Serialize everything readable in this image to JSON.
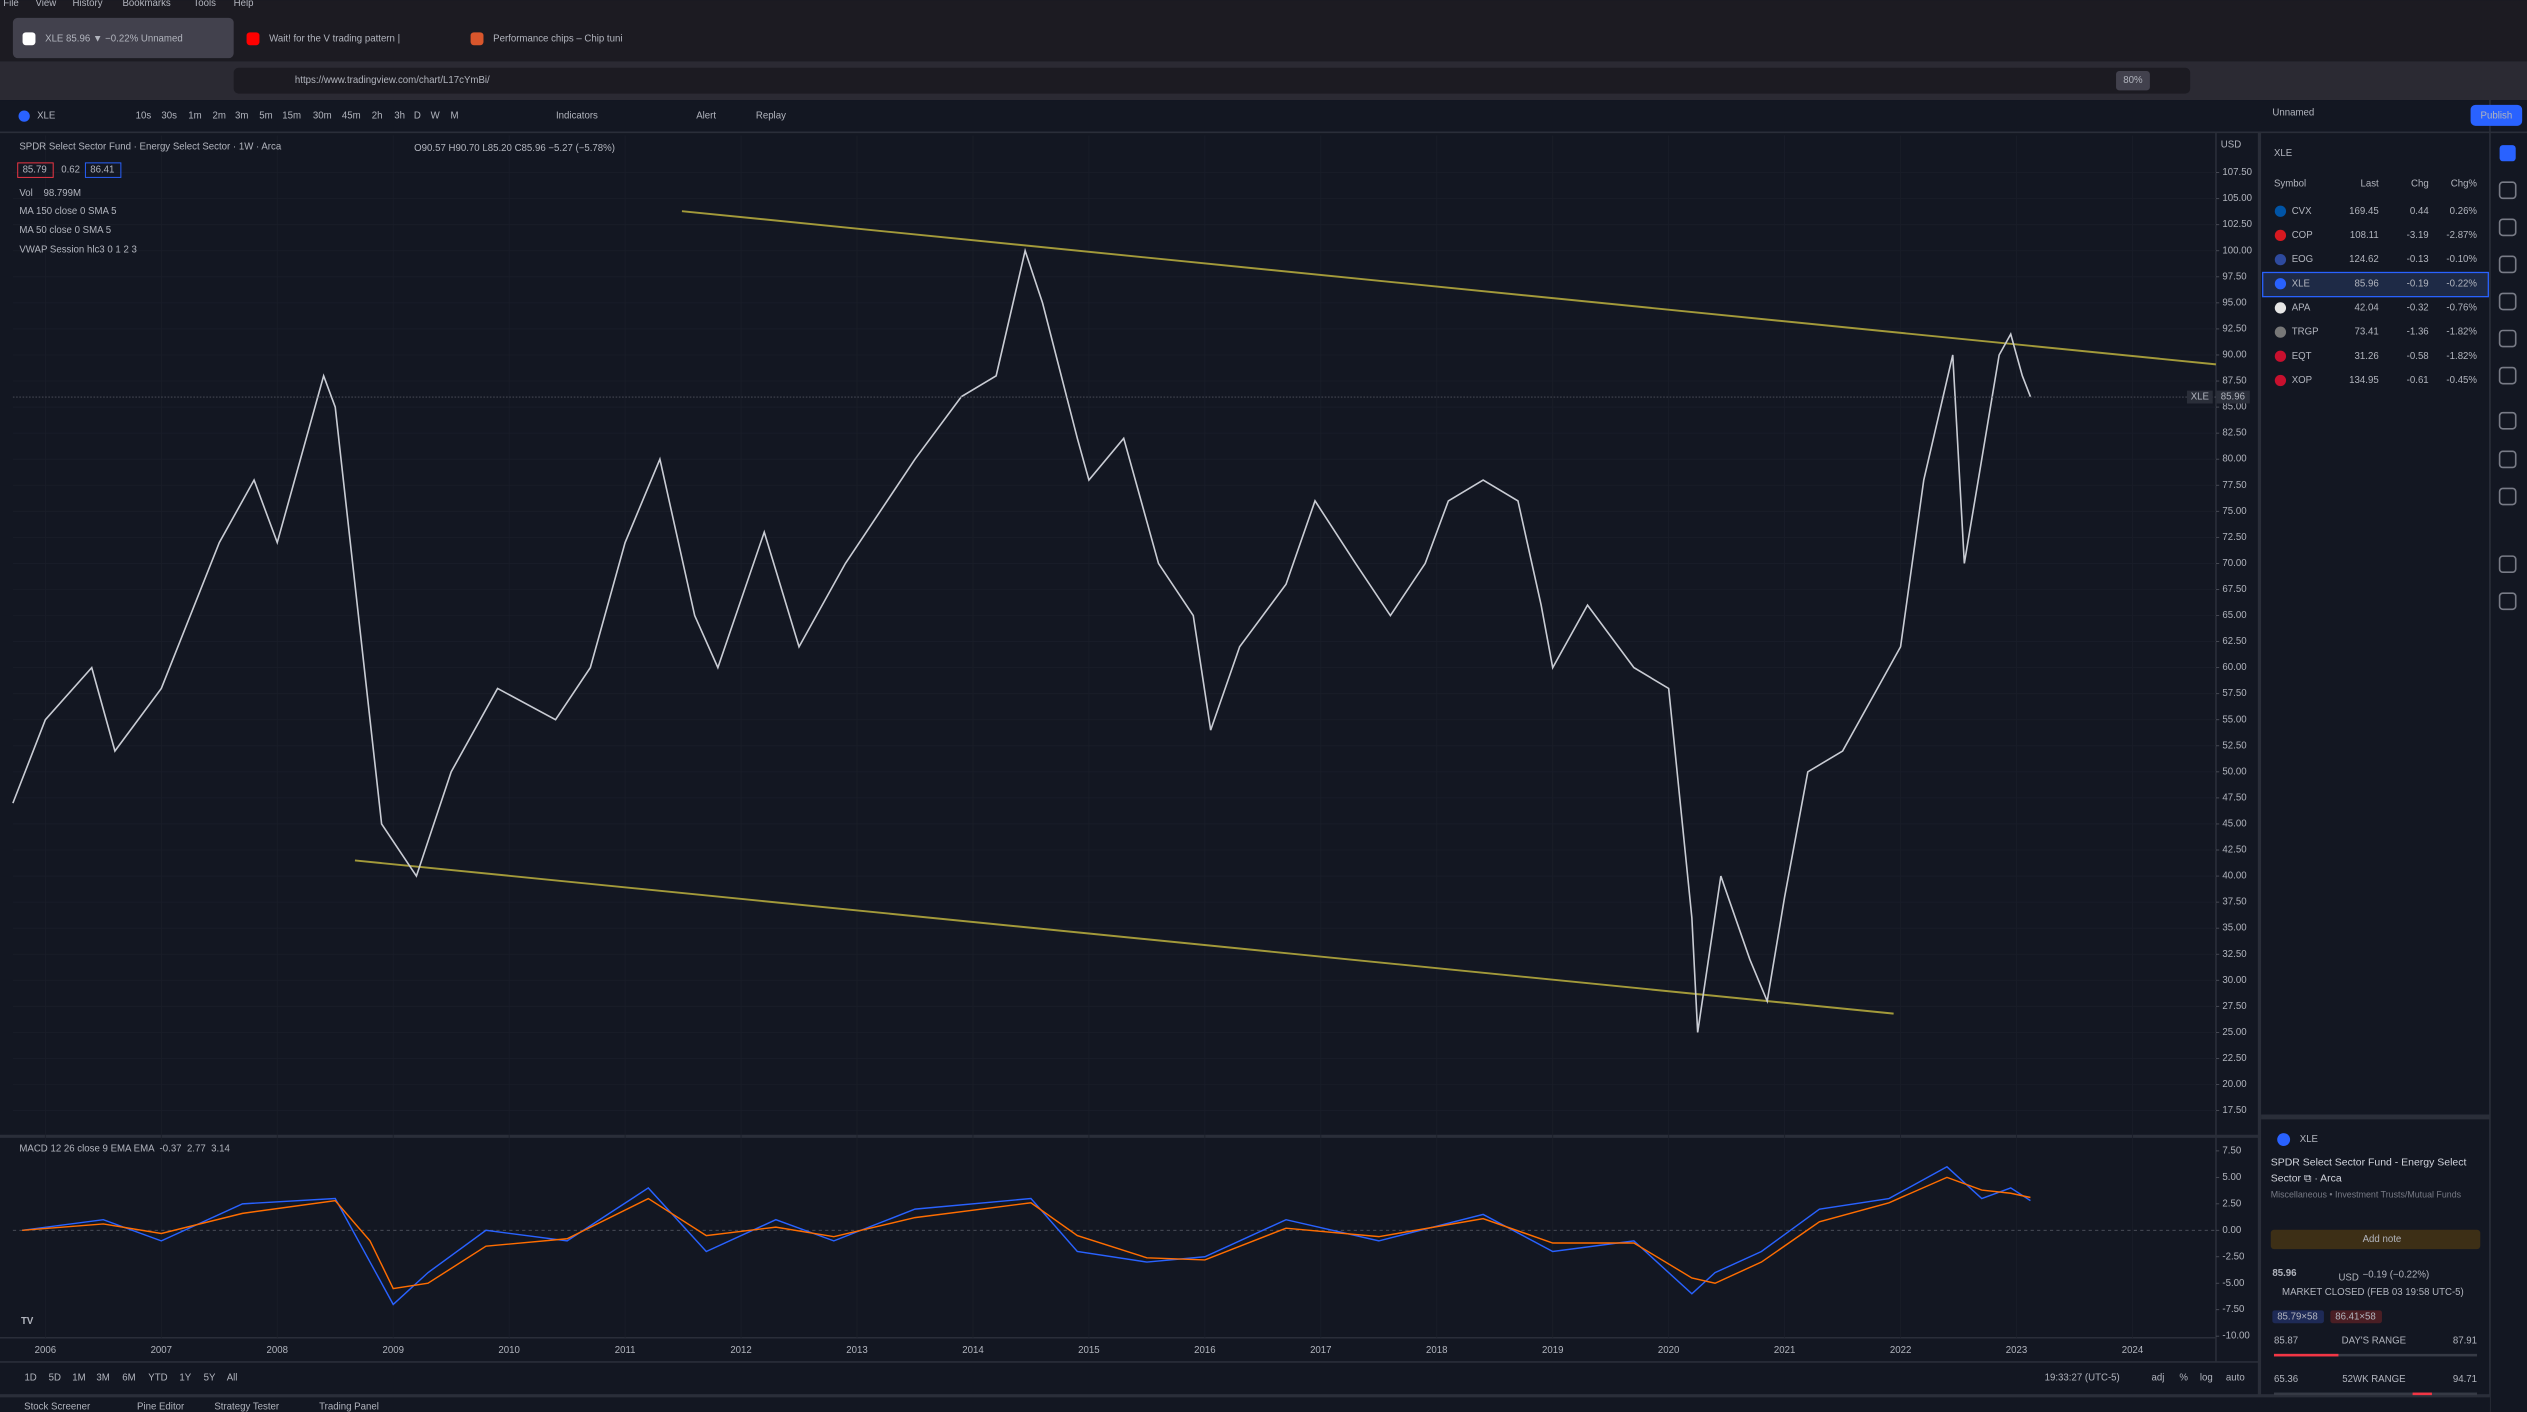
{
  "browser": {
    "menu": [
      "File",
      "View",
      "History",
      "Bookmarks",
      "Tools",
      "Help"
    ],
    "tabs": [
      "XLE 85.96 ▼ −0.22% Unnamed",
      "Wait! for the V trading pattern |",
      "Performance chips – Chip tuni"
    ],
    "url": "https://www.tradingview.com/chart/L17cYmBi/",
    "zoom": "80%"
  },
  "toolbar": {
    "symbol": "XLE",
    "intervals": [
      "10s",
      "30s",
      "1m",
      "2m",
      "3m",
      "5m",
      "15m",
      "30m",
      "45m",
      "2h",
      "3h",
      "D",
      "W",
      "M"
    ],
    "indicators": "Indicators",
    "alert": "Alert",
    "replay": "Replay",
    "layout": "Unnamed",
    "publish": "Publish"
  },
  "chart_data": [
    {
      "type": "line",
      "title": "SPDR Select Sector Fund · Energy Select Sector · 1W · Arca",
      "ohlc": "O90.57 H90.70 L85.20 C85.96 −5.27 (−5.78%)",
      "bid": "85.79",
      "spread": "0.62",
      "ask": "86.41",
      "volume_label": "Vol",
      "volume": "98.799M",
      "studies": [
        "MA 150 close 0 SMA 5",
        "MA 50 close 0 SMA 5",
        "VWAP Session hlc3 0 1 2 3"
      ],
      "currency": "USD",
      "price_label_symbol": "XLE",
      "price_label": 85.96,
      "color": "#c9ccd4",
      "x": [
        2005.72,
        2006.0,
        2006.4,
        2006.6,
        2007.0,
        2007.5,
        2007.8,
        2008.0,
        2008.4,
        2008.5,
        2008.75,
        2008.9,
        2009.2,
        2009.5,
        2009.9,
        2010.4,
        2010.7,
        2011.0,
        2011.3,
        2011.6,
        2011.8,
        2012.2,
        2012.5,
        2012.9,
        2013.5,
        2013.9,
        2014.2,
        2014.45,
        2014.6,
        2014.9,
        2015.0,
        2015.3,
        2015.6,
        2015.9,
        2016.05,
        2016.3,
        2016.7,
        2016.95,
        2017.3,
        2017.6,
        2017.9,
        2018.1,
        2018.4,
        2018.7,
        2018.9,
        2019.0,
        2019.3,
        2019.7,
        2020.0,
        2020.2,
        2020.25,
        2020.45,
        2020.7,
        2020.85,
        2021.0,
        2021.2,
        2021.5,
        2021.8,
        2022.0,
        2022.2,
        2022.45,
        2022.55,
        2022.7,
        2022.85,
        2022.95,
        2023.05,
        2023.12
      ],
      "values": [
        47,
        55,
        60,
        52,
        58,
        72,
        78,
        72,
        88,
        85,
        60,
        45,
        40,
        50,
        58,
        55,
        60,
        72,
        80,
        65,
        60,
        73,
        62,
        70,
        80,
        86,
        88,
        100,
        95,
        82,
        78,
        82,
        70,
        65,
        54,
        62,
        68,
        76,
        70,
        65,
        70,
        76,
        78,
        76,
        66,
        60,
        66,
        60,
        58,
        36,
        25,
        40,
        32,
        28,
        38,
        50,
        52,
        58,
        62,
        78,
        90,
        70,
        80,
        90,
        92,
        88,
        86
      ],
      "trend_lines": [
        {
          "color": "#a39a3a",
          "x": [
            2011.49,
            2024.72
          ],
          "values": [
            103.8,
            89.1
          ]
        },
        {
          "color": "#a39a3a",
          "x": [
            2008.67,
            2021.94
          ],
          "values": [
            41.5,
            26.8
          ]
        }
      ],
      "xlim": [
        2005.72,
        2024.72
      ],
      "xticks": [
        2006,
        2007,
        2008,
        2009,
        2010,
        2011,
        2012,
        2013,
        2014,
        2015,
        2016,
        2017,
        2018,
        2019,
        2020,
        2021,
        2022,
        2023,
        2024
      ],
      "ylim": [
        15.03,
        111.06
      ],
      "grid": true,
      "yticks": [
        {
          "value": 17.5,
          "label": "17.50"
        },
        {
          "value": 20,
          "label": "20.00"
        },
        {
          "value": 22.5,
          "label": "22.50"
        },
        {
          "value": 25,
          "label": "25.00"
        },
        {
          "value": 27.5,
          "label": "27.50"
        },
        {
          "value": 30,
          "label": "30.00"
        },
        {
          "value": 32.5,
          "label": "32.50"
        },
        {
          "value": 35,
          "label": "35.00"
        },
        {
          "value": 37.5,
          "label": "37.50"
        },
        {
          "value": 40,
          "label": "40.00"
        },
        {
          "value": 42.5,
          "label": "42.50"
        },
        {
          "value": 45,
          "label": "45.00"
        },
        {
          "value": 47.5,
          "label": "47.50"
        },
        {
          "value": 50,
          "label": "50.00"
        },
        {
          "value": 52.5,
          "label": "52.50"
        },
        {
          "value": 55,
          "label": "55.00"
        },
        {
          "value": 57.5,
          "label": "57.50"
        },
        {
          "value": 60,
          "label": "60.00"
        },
        {
          "value": 62.5,
          "label": "62.50"
        },
        {
          "value": 65,
          "label": "65.00"
        },
        {
          "value": 67.5,
          "label": "67.50"
        },
        {
          "value": 70,
          "label": "70.00"
        },
        {
          "value": 72.5,
          "label": "72.50"
        },
        {
          "value": 75,
          "label": "75.00"
        },
        {
          "value": 77.5,
          "label": "77.50"
        },
        {
          "value": 80,
          "label": "80.00"
        },
        {
          "value": 82.5,
          "label": "82.50"
        },
        {
          "value": 85,
          "label": "85.00"
        },
        {
          "value": 87.5,
          "label": "87.50"
        },
        {
          "value": 90,
          "label": "90.00"
        },
        {
          "value": 92.5,
          "label": "92.50"
        },
        {
          "value": 95,
          "label": "95.00"
        },
        {
          "value": 97.5,
          "label": "97.50"
        },
        {
          "value": 100,
          "label": "100.00"
        },
        {
          "value": 102.5,
          "label": "102.50"
        },
        {
          "value": 105,
          "label": "105.00"
        },
        {
          "value": 107.5,
          "label": "107.50"
        }
      ]
    },
    {
      "type": "line",
      "title": "MACD 12 26 close 9 EMA EMA",
      "readings": [
        {
          "text": "-0.37",
          "color": "#f23645"
        },
        {
          "text": "2.77",
          "color": "#2962ff"
        },
        {
          "text": "3.14",
          "color": "#ff6d00"
        }
      ],
      "x": [
        2005.8,
        2006.5,
        2007.0,
        2007.7,
        2008.5,
        2008.8,
        2009.0,
        2009.3,
        2009.8,
        2010.5,
        2011.2,
        2011.7,
        2012.3,
        2012.8,
        2013.5,
        2014.5,
        2014.9,
        2015.5,
        2016.0,
        2016.7,
        2017.5,
        2018.4,
        2019.0,
        2019.7,
        2020.2,
        2020.4,
        2020.8,
        2021.3,
        2021.9,
        2022.4,
        2022.7,
        2022.95,
        2023.12
      ],
      "series": [
        {
          "color": "#2962ff",
          "values": [
            0,
            1,
            -1,
            2.5,
            3,
            -3,
            -7,
            -4,
            0,
            -1,
            4,
            -2,
            1,
            -1,
            2,
            3,
            -2,
            -3,
            -2.5,
            1,
            -1,
            1.5,
            -2,
            -1,
            -6,
            -4,
            -2,
            2,
            3,
            6,
            3,
            4,
            2.8
          ]
        },
        {
          "color": "#ff6d00",
          "values": [
            0,
            0.6,
            -0.3,
            1.6,
            2.8,
            -1,
            -5.5,
            -5,
            -1.5,
            -0.8,
            3,
            -0.5,
            0.3,
            -0.6,
            1.2,
            2.6,
            -0.5,
            -2.6,
            -2.8,
            0.2,
            -0.6,
            1.1,
            -1.2,
            -1.2,
            -4.5,
            -5,
            -3,
            0.8,
            2.6,
            5,
            3.8,
            3.5,
            3.1
          ]
        }
      ],
      "ylim": [
        -10.15,
        8.88
      ],
      "yticks": [
        {
          "value": 7.5,
          "label": "7.50"
        },
        {
          "value": 5,
          "label": "5.00"
        },
        {
          "value": 2.5,
          "label": "2.50"
        },
        {
          "value": 0,
          "label": "0.00"
        },
        {
          "value": -2.5,
          "label": "-2.50"
        },
        {
          "value": -5,
          "label": "-5.00"
        },
        {
          "value": -7.5,
          "label": "-7.50"
        },
        {
          "value": -10,
          "label": "-10.00"
        }
      ]
    }
  ],
  "bottom": {
    "ranges": [
      "1D",
      "5D",
      "1M",
      "3M",
      "6M",
      "YTD",
      "1Y",
      "5Y",
      "All"
    ],
    "clock": "19:33:27 (UTC-5)",
    "options": [
      "adj",
      "%",
      "log",
      "auto"
    ],
    "tabs": [
      "Stock Screener",
      "Pine Editor",
      "Strategy Tester",
      "Trading Panel"
    ]
  },
  "watchlist": {
    "title": "XLE",
    "columns": [
      "Symbol",
      "Last",
      "Chg",
      "Chg%"
    ],
    "rows": [
      [
        "CVX",
        "169.45",
        "0.44",
        "0.26%"
      ],
      [
        "COP",
        "108.11",
        "-3.19",
        "-2.87%"
      ],
      [
        "EOG",
        "124.62",
        "-0.13",
        "-0.10%"
      ],
      [
        "XLE",
        "85.96",
        "-0.19",
        "-0.22%"
      ],
      [
        "APA",
        "42.04",
        "-0.32",
        "-0.76%"
      ],
      [
        "TRGP",
        "73.41",
        "-1.36",
        "-1.82%"
      ],
      [
        "EQT",
        "31.26",
        "-0.58",
        "-1.82%"
      ],
      [
        "XOP",
        "134.95",
        "-0.61",
        "-0.45%"
      ]
    ]
  },
  "details": {
    "symbol": "XLE",
    "description": "SPDR Select Sector Fund - Energy Select Sector ⧉ · Arca",
    "category": "Miscellaneous • Investment Trusts/Mutual Funds",
    "add_note": "Add note",
    "price": "85.96",
    "currency": "USD",
    "change": "−0.19 (−0.22%)",
    "status": "MARKET CLOSED (FEB 03 19:58 UTC-5)",
    "bid": "85.79×58",
    "ask": "86.41×58",
    "day_low": "85.87",
    "day_label": "DAY'S RANGE",
    "day_high": "87.91",
    "year_low": "65.36",
    "year_label": "52WK RANGE",
    "year_high": "94.71"
  }
}
